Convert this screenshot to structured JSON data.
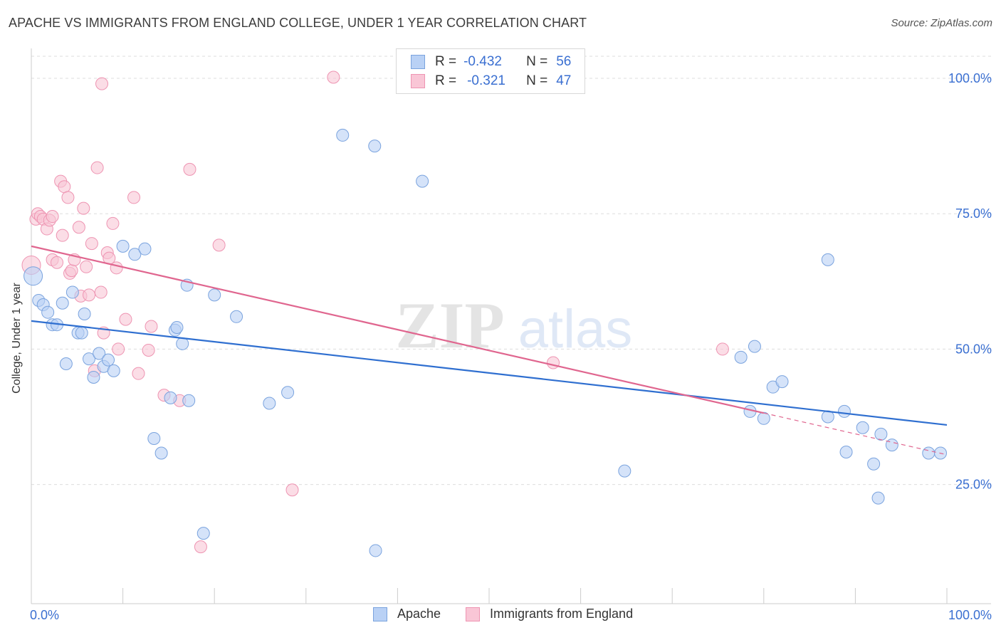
{
  "title": "APACHE VS IMMIGRANTS FROM ENGLAND COLLEGE, UNDER 1 YEAR CORRELATION CHART",
  "source": "Source: ZipAtlas.com",
  "watermark": {
    "zip": "ZIP",
    "atlas": "atlas"
  },
  "colors": {
    "apache_fill": "#b9d1f5",
    "apache_stroke": "#7aa3de",
    "apache_line": "#2f6fd0",
    "england_fill": "#f9c6d6",
    "england_stroke": "#ee94b2",
    "england_line": "#e0668f",
    "axis_text": "#3a6fd1",
    "grid": "#dddddd"
  },
  "legend": {
    "apache": {
      "r_label": "R =",
      "r_value": "-0.432",
      "n_label": "N =",
      "n_value": "56"
    },
    "england": {
      "r_label": "R =",
      "r_value": "-0.321",
      "n_label": "N =",
      "n_value": "47"
    }
  },
  "chart_data": {
    "type": "scatter",
    "title": "APACHE VS IMMIGRANTS FROM ENGLAND COLLEGE, UNDER 1 YEAR CORRELATION CHART",
    "xlabel": "",
    "ylabel": "College, Under 1 year",
    "xlim": [
      0,
      100
    ],
    "ylim": [
      3,
      105
    ],
    "x_tick_labels": [
      "0.0%",
      "100.0%"
    ],
    "y_tick_labels": [
      "25.0%",
      "50.0%",
      "75.0%",
      "100.0%"
    ],
    "y_ticks": [
      25,
      50,
      75,
      100
    ],
    "legend_position": "top-center",
    "series": [
      {
        "name": "Apache",
        "trend": {
          "x": [
            0,
            100
          ],
          "y": [
            55.2,
            36.0
          ],
          "dashed_from": null
        },
        "points": [
          [
            0.2,
            63.5
          ],
          [
            0.8,
            59.0
          ],
          [
            1.3,
            58.2
          ],
          [
            1.8,
            56.8
          ],
          [
            2.3,
            54.5
          ],
          [
            2.8,
            54.5
          ],
          [
            3.4,
            58.5
          ],
          [
            3.8,
            47.3
          ],
          [
            4.5,
            60.5
          ],
          [
            5.1,
            53.0
          ],
          [
            5.5,
            53.0
          ],
          [
            5.8,
            56.5
          ],
          [
            6.3,
            48.2
          ],
          [
            6.8,
            44.8
          ],
          [
            7.4,
            49.2
          ],
          [
            7.9,
            46.8
          ],
          [
            8.4,
            48.0
          ],
          [
            9.0,
            46.0
          ],
          [
            10.0,
            69.0
          ],
          [
            11.3,
            67.5
          ],
          [
            12.4,
            68.5
          ],
          [
            13.4,
            33.5
          ],
          [
            14.2,
            30.8
          ],
          [
            15.2,
            41.0
          ],
          [
            15.7,
            53.5
          ],
          [
            15.9,
            54.0
          ],
          [
            16.5,
            51.0
          ],
          [
            17.0,
            61.8
          ],
          [
            17.2,
            40.5
          ],
          [
            18.8,
            16.0
          ],
          [
            20.0,
            60.0
          ],
          [
            22.4,
            56.0
          ],
          [
            26.0,
            40.0
          ],
          [
            28.0,
            42.0
          ],
          [
            34.0,
            89.5
          ],
          [
            37.5,
            87.5
          ],
          [
            37.6,
            12.8
          ],
          [
            42.7,
            81.0
          ],
          [
            64.8,
            27.5
          ],
          [
            77.5,
            48.5
          ],
          [
            78.5,
            38.5
          ],
          [
            79.0,
            50.5
          ],
          [
            80.0,
            37.2
          ],
          [
            81.0,
            43.0
          ],
          [
            82.0,
            44.0
          ],
          [
            87.0,
            66.5
          ],
          [
            87.0,
            37.5
          ],
          [
            88.8,
            38.5
          ],
          [
            89.0,
            31.0
          ],
          [
            90.8,
            35.5
          ],
          [
            92.0,
            28.8
          ],
          [
            92.5,
            22.5
          ],
          [
            92.8,
            34.3
          ],
          [
            94.0,
            32.3
          ],
          [
            98.0,
            30.8
          ],
          [
            99.3,
            30.8
          ]
        ]
      },
      {
        "name": "Immigrants from England",
        "trend": {
          "x": [
            0,
            80,
            100
          ],
          "y": [
            69.0,
            38.2,
            30.5
          ],
          "dashed_from": 80
        },
        "points": [
          [
            0.0,
            65.5
          ],
          [
            0.5,
            74.0
          ],
          [
            0.7,
            75.0
          ],
          [
            1.0,
            74.5
          ],
          [
            1.3,
            74.0
          ],
          [
            1.7,
            72.2
          ],
          [
            2.0,
            73.8
          ],
          [
            2.3,
            74.5
          ],
          [
            2.3,
            66.5
          ],
          [
            2.8,
            66.0
          ],
          [
            3.2,
            81.0
          ],
          [
            3.4,
            71.0
          ],
          [
            3.6,
            80.0
          ],
          [
            4.0,
            78.0
          ],
          [
            4.2,
            64.0
          ],
          [
            4.4,
            64.5
          ],
          [
            4.7,
            66.5
          ],
          [
            5.2,
            72.5
          ],
          [
            5.4,
            59.8
          ],
          [
            5.7,
            76.0
          ],
          [
            6.0,
            65.2
          ],
          [
            6.3,
            60.0
          ],
          [
            6.6,
            69.5
          ],
          [
            6.9,
            46.0
          ],
          [
            7.2,
            83.5
          ],
          [
            7.6,
            60.5
          ],
          [
            7.7,
            99.0
          ],
          [
            7.9,
            53.0
          ],
          [
            8.3,
            67.8
          ],
          [
            8.5,
            66.8
          ],
          [
            8.9,
            73.2
          ],
          [
            9.3,
            65.0
          ],
          [
            9.5,
            50.0
          ],
          [
            10.3,
            55.5
          ],
          [
            11.2,
            78.0
          ],
          [
            11.7,
            45.5
          ],
          [
            12.8,
            49.8
          ],
          [
            13.1,
            54.2
          ],
          [
            14.5,
            41.5
          ],
          [
            16.2,
            40.5
          ],
          [
            17.3,
            83.2
          ],
          [
            18.5,
            13.5
          ],
          [
            20.5,
            69.2
          ],
          [
            28.5,
            24.0
          ],
          [
            33.0,
            100.2
          ],
          [
            57.0,
            47.5
          ],
          [
            75.5,
            50.0
          ]
        ]
      }
    ]
  },
  "bottom_legend": {
    "apache": "Apache",
    "england": "Immigrants from England"
  }
}
